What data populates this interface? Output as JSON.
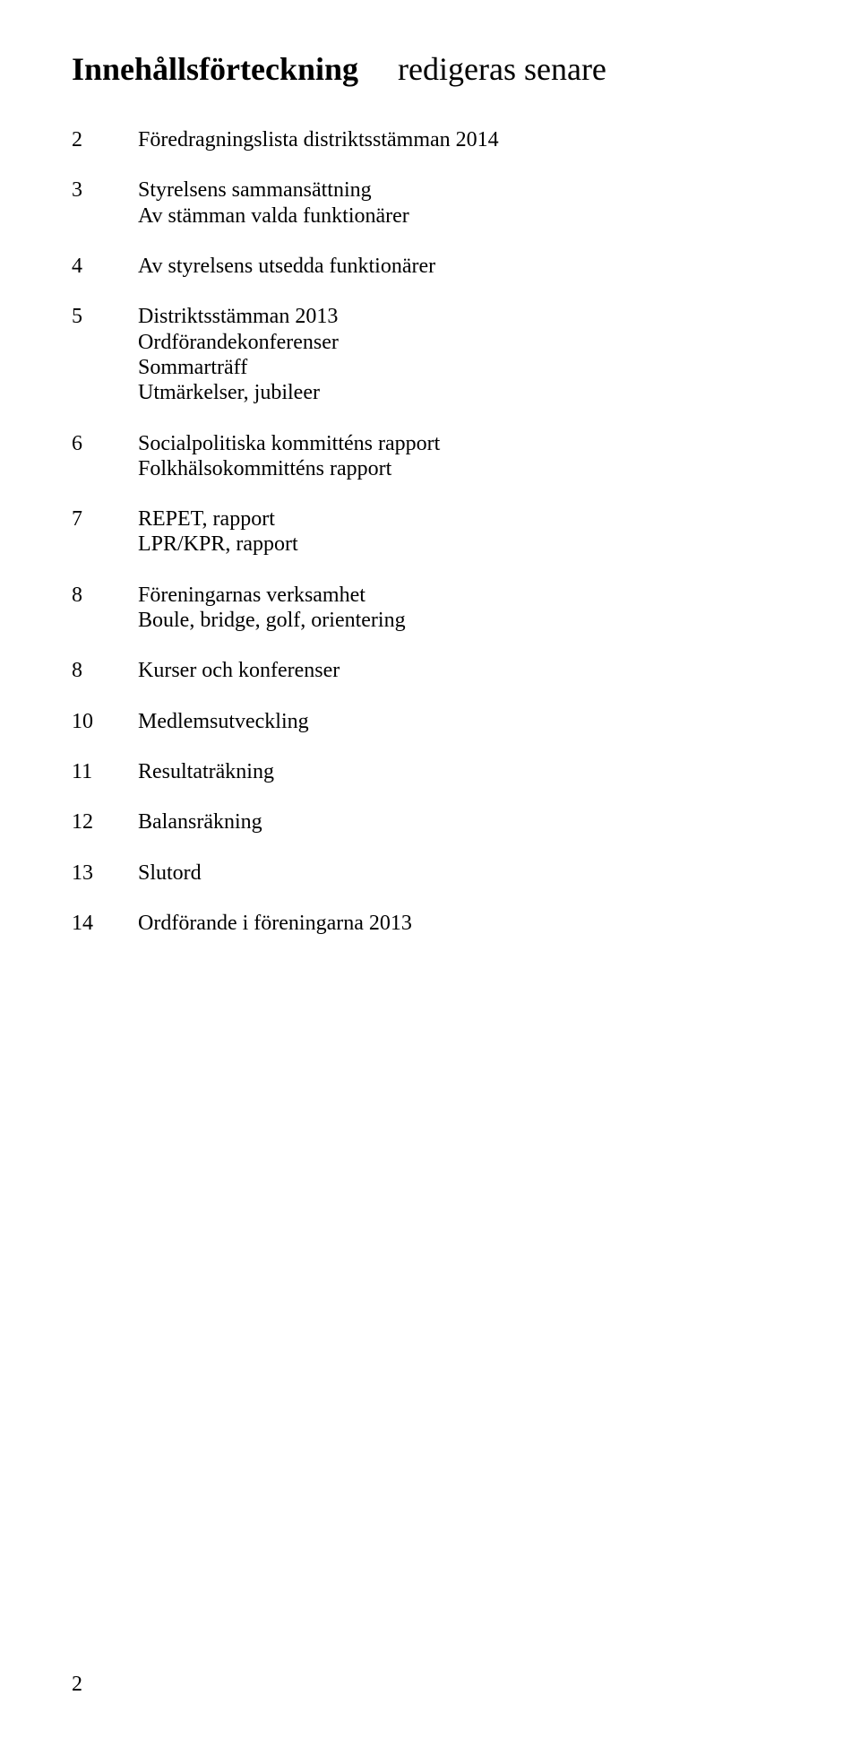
{
  "header": {
    "title": "Innehållsförteckning",
    "subtitle": "redigeras senare"
  },
  "toc": [
    {
      "num": "2",
      "lines": [
        "Föredragningslista distriktsstämman 2014"
      ]
    },
    {
      "num": "3",
      "lines": [
        "Styrelsens sammansättning",
        "Av stämman valda funktionärer"
      ]
    },
    {
      "num": "4",
      "lines": [
        "Av styrelsens utsedda funktionärer"
      ]
    },
    {
      "num": "5",
      "lines": [
        "Distriktsstämman 2013",
        "Ordförandekonferenser",
        "Sommarträff",
        "Utmärkelser, jubileer"
      ]
    },
    {
      "num": "6",
      "lines": [
        "Socialpolitiska kommitténs rapport",
        "Folkhälsokommitténs rapport"
      ]
    },
    {
      "num": "7",
      "lines": [
        "REPET, rapport",
        "LPR/KPR, rapport"
      ]
    },
    {
      "num": "8",
      "lines": [
        "Föreningarnas verksamhet",
        "Boule, bridge, golf, orientering"
      ]
    },
    {
      "num": "8",
      "lines": [
        "Kurser och konferenser"
      ]
    },
    {
      "num": "10",
      "lines": [
        "Medlemsutveckling"
      ]
    },
    {
      "num": "11",
      "lines": [
        "Resultaträkning"
      ]
    },
    {
      "num": "12",
      "lines": [
        "Balansräkning"
      ]
    },
    {
      "num": "13",
      "lines": [
        "Slutord"
      ]
    },
    {
      "num": "14",
      "lines": [
        "Ordförande i föreningarna 2013"
      ]
    }
  ],
  "page_number": "2"
}
